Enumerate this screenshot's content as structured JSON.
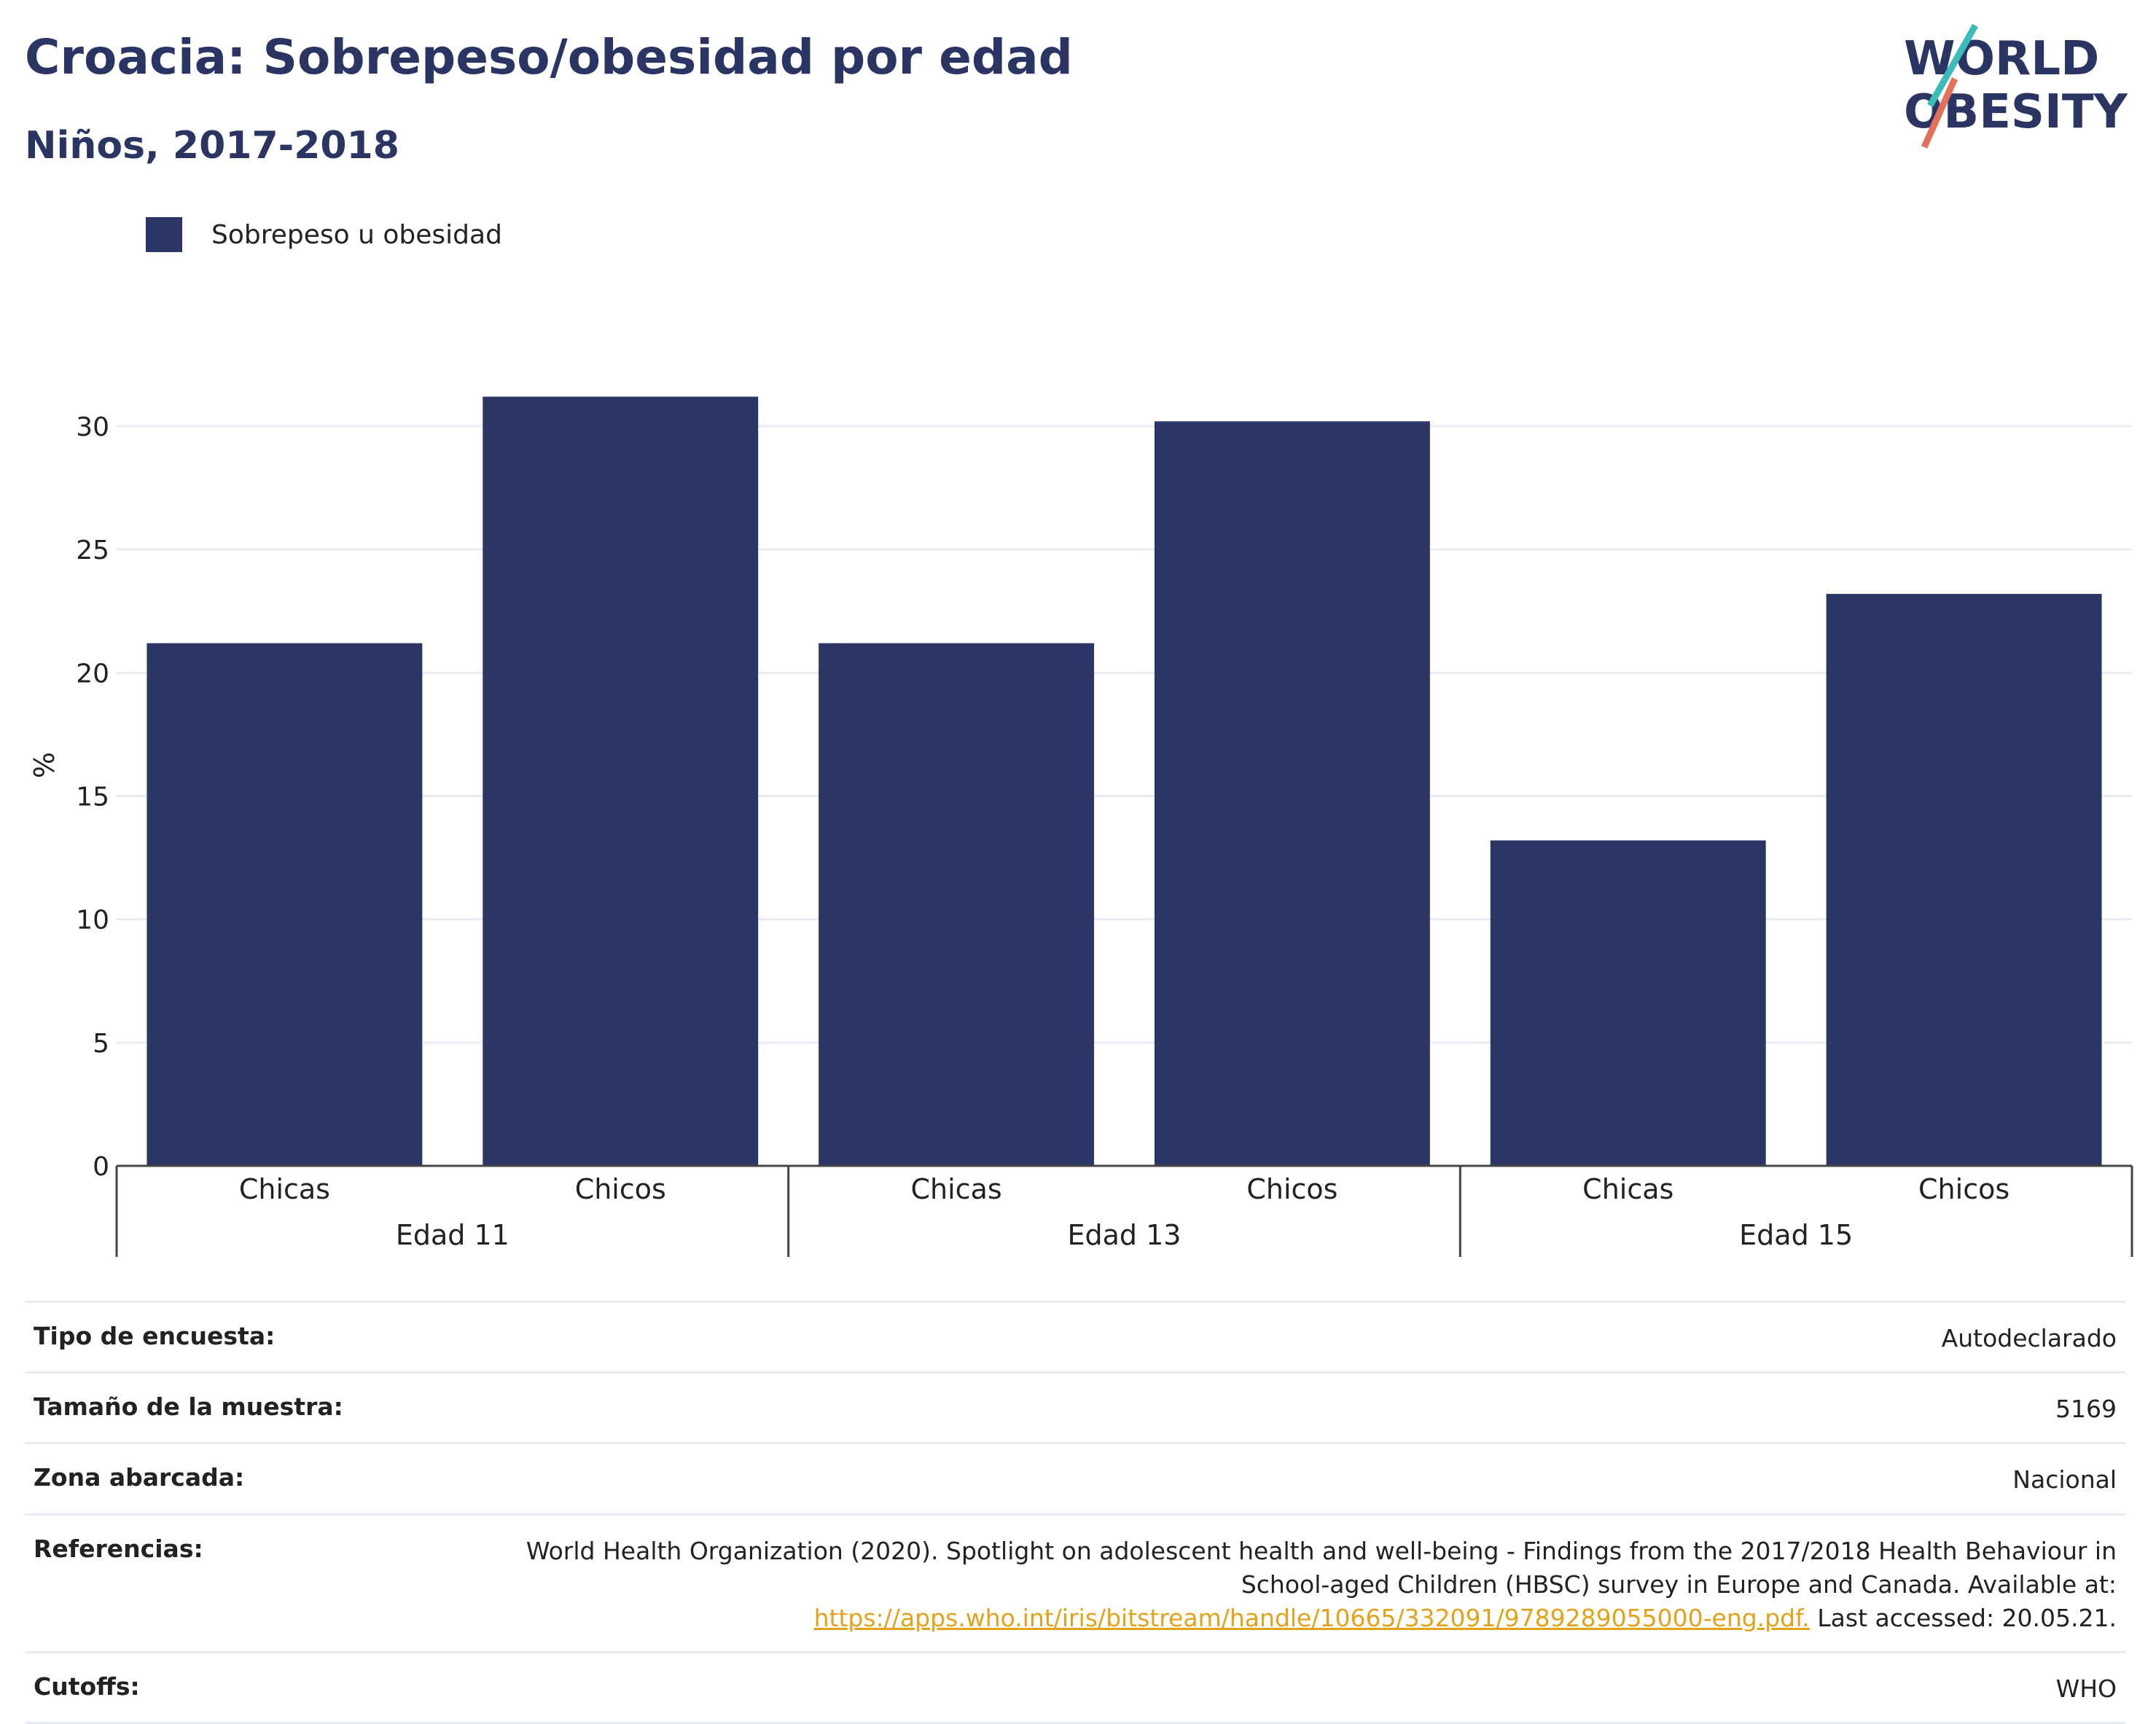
{
  "header": {
    "title": "Croacia: Sobrepeso/obesidad por edad",
    "subtitle": "Niños, 2017-2018"
  },
  "logo": {
    "line1": "WORLD",
    "line2": "OBESITY"
  },
  "chart_data": {
    "type": "bar",
    "ylabel": "%",
    "ylim": [
      0,
      32
    ],
    "yticks": [
      0,
      5,
      10,
      15,
      20,
      25,
      30
    ],
    "grid": true,
    "legend_position": "top-left",
    "bar_color": "#2b3664",
    "groups": [
      "Edad 11",
      "Edad 13",
      "Edad 15"
    ],
    "categories": [
      "Chicas",
      "Chicos",
      "Chicas",
      "Chicos",
      "Chicas",
      "Chicos"
    ],
    "series": [
      {
        "name": "Sobrepeso u obesidad",
        "values": [
          21.2,
          31.2,
          21.2,
          30.2,
          13.2,
          23.2
        ]
      }
    ]
  },
  "info_table": [
    {
      "label": "Tipo de encuesta:",
      "value": "Autodeclarado"
    },
    {
      "label": "Tamaño de la muestra:",
      "value": "5169"
    },
    {
      "label": "Zona abarcada:",
      "value": "Nacional"
    },
    {
      "label": "Referencias:",
      "value_line1": "World Health Organization (2020). Spotlight on adolescent health and well-being - Findings from the 2017/2018 Health Behaviour in",
      "value_line2": "School-aged Children (HBSC) survey in Europe and Canada. Available at:",
      "link": "https://apps.who.int/iris/bitstream/handle/10665/332091/9789289055000-eng.pdf.",
      "value_suffix": " Last accessed: 20.05.21."
    },
    {
      "label": "Cutoffs:",
      "value": "WHO"
    }
  ]
}
